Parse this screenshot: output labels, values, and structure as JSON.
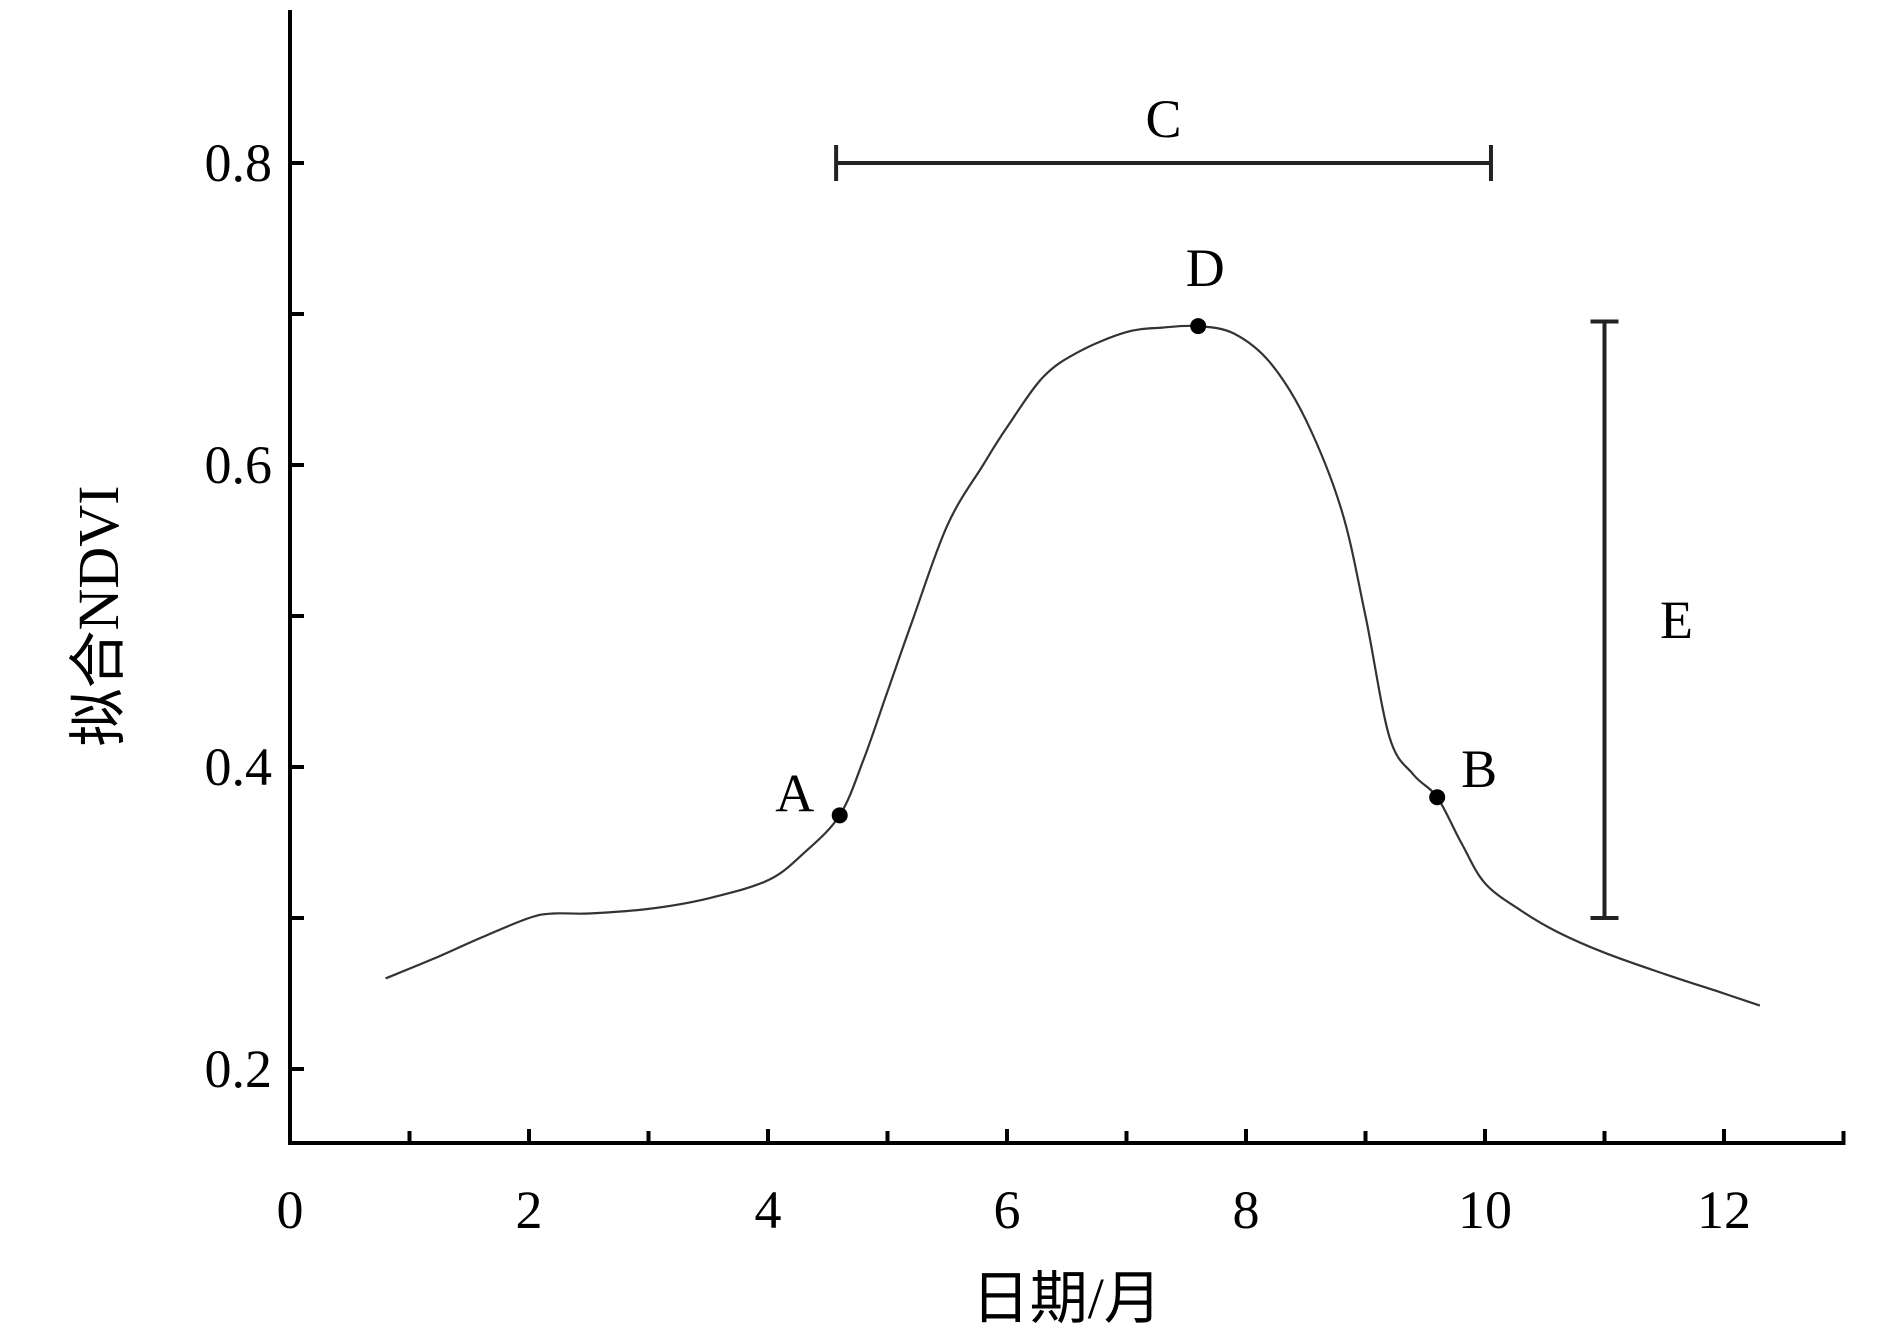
{
  "chart_data": {
    "type": "line",
    "title": "",
    "xlabel": "日期/月",
    "ylabel": "拟合NDVI",
    "xlim": [
      0,
      13
    ],
    "ylim": [
      0.15,
      0.9
    ],
    "x_ticks_major": [
      0,
      2,
      4,
      6,
      8,
      10,
      12
    ],
    "x_ticks_minor": [
      1,
      3,
      5,
      7,
      9,
      11,
      13
    ],
    "y_ticks_labeled": [
      0.2,
      0.4,
      0.6,
      0.8
    ],
    "y_ticks_unlabeled": [
      0.3,
      0.5,
      0.7
    ],
    "grid": false,
    "legend": "none",
    "series": [
      {
        "color": "#333333",
        "x": [
          0.8,
          1.2,
          1.6,
          2.0,
          2.2,
          2.5,
          3.0,
          3.5,
          4.0,
          4.3,
          4.6,
          4.8,
          5.0,
          5.2,
          5.5,
          5.8,
          6.0,
          6.3,
          6.6,
          7.0,
          7.3,
          7.6,
          7.9,
          8.2,
          8.5,
          8.8,
          9.0,
          9.2,
          9.4,
          9.6,
          9.8,
          10.0,
          10.3,
          10.6,
          11.0,
          11.5,
          12.0,
          12.3
        ],
        "y": [
          0.26,
          0.273,
          0.287,
          0.3,
          0.303,
          0.303,
          0.306,
          0.313,
          0.325,
          0.343,
          0.368,
          0.405,
          0.45,
          0.495,
          0.56,
          0.6,
          0.625,
          0.658,
          0.675,
          0.688,
          0.691,
          0.692,
          0.687,
          0.668,
          0.63,
          0.57,
          0.5,
          0.42,
          0.395,
          0.38,
          0.35,
          0.323,
          0.305,
          0.291,
          0.277,
          0.263,
          0.25,
          0.242
        ]
      }
    ],
    "points": [
      {
        "label": "A",
        "x": 4.6,
        "y": 0.368
      },
      {
        "label": "B",
        "x": 9.6,
        "y": 0.38
      },
      {
        "label": "D",
        "x": 7.6,
        "y": 0.692
      }
    ],
    "spans": [
      {
        "label": "C",
        "orientation": "horizontal",
        "x_start": 4.57,
        "x_end": 10.05,
        "y": 0.8
      },
      {
        "label": "E",
        "orientation": "vertical",
        "x": 11.0,
        "y_start": 0.3,
        "y_end": 0.695
      }
    ]
  }
}
